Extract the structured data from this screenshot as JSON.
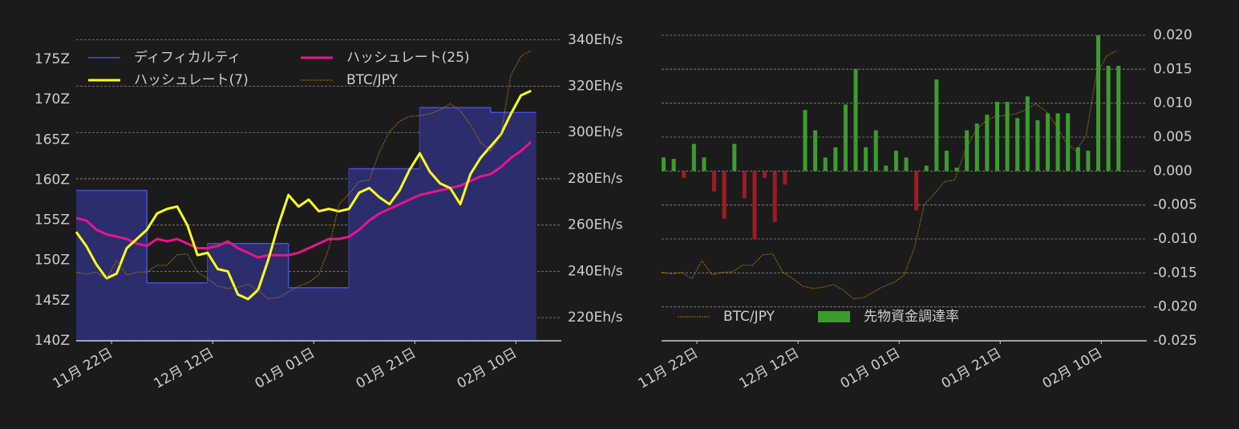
{
  "chart_data": [
    {
      "type": "line",
      "x": [
        0,
        2,
        4,
        6,
        8,
        10,
        12,
        14,
        16,
        18,
        20,
        22,
        24,
        26,
        28,
        30,
        32,
        34,
        36,
        38,
        40,
        42,
        44,
        46,
        48,
        50,
        52,
        54,
        56,
        58,
        60,
        62,
        64,
        66,
        68,
        70,
        72,
        74,
        76,
        78,
        80,
        82,
        84,
        86,
        88,
        90
      ],
      "xlim": [
        0,
        96
      ],
      "xticks": [
        {
          "value": 7,
          "label": "11月 22日"
        },
        {
          "value": 27,
          "label": "12月 12日"
        },
        {
          "value": 47,
          "label": "01月 01日"
        },
        {
          "value": 67,
          "label": "01月 21日"
        },
        {
          "value": 87,
          "label": "02月 10日"
        }
      ],
      "ylim": [
        140,
        178
      ],
      "yticks": [
        {
          "value": 140,
          "label": "140Z"
        },
        {
          "value": 145,
          "label": "145Z"
        },
        {
          "value": 150,
          "label": "150Z"
        },
        {
          "value": 155,
          "label": "155Z"
        },
        {
          "value": 160,
          "label": "160Z"
        },
        {
          "value": 165,
          "label": "165Z"
        },
        {
          "value": 170,
          "label": "170Z"
        },
        {
          "value": 175,
          "label": "175Z"
        }
      ],
      "y2lim": [
        210,
        342
      ],
      "y2ticks": [
        {
          "value": 220,
          "label": "220Eh/s"
        },
        {
          "value": 240,
          "label": "240Eh/s"
        },
        {
          "value": 260,
          "label": "260Eh/s"
        },
        {
          "value": 280,
          "label": "280Eh/s"
        },
        {
          "value": 300,
          "label": "300Eh/s"
        },
        {
          "value": 320,
          "label": "320Eh/s"
        },
        {
          "value": 340,
          "label": "340Eh/s"
        }
      ],
      "y3lim": [
        10,
        17
      ],
      "grid": "y2",
      "series": [
        {
          "name": "ディフィカルティ",
          "style": "step-area",
          "color": "#4b50d8",
          "fill": "#2b2d6c",
          "values": [
            158.7,
            158.7,
            158.7,
            158.7,
            158.7,
            158.7,
            158.7,
            147.2,
            147.2,
            147.2,
            147.2,
            147.2,
            147.2,
            152.1,
            152.1,
            152.1,
            152.1,
            152.1,
            152.1,
            152.1,
            152.1,
            146.6,
            146.6,
            146.6,
            146.6,
            146.6,
            146.6,
            161.4,
            161.4,
            161.4,
            161.4,
            161.4,
            161.4,
            161.4,
            169.0,
            169.0,
            169.0,
            169.0,
            169.0,
            169.0,
            169.0,
            168.4,
            168.4,
            168.4,
            168.4,
            168.4
          ]
        },
        {
          "name": "ハッシュレート(25)",
          "style": "line",
          "axis": "y2",
          "color": "#e8158c",
          "values": [
            263,
            262,
            258,
            256,
            255,
            254,
            252,
            251,
            254,
            253,
            254,
            252,
            250,
            250,
            251,
            253,
            250,
            248,
            246,
            247,
            247,
            247,
            248,
            250,
            252,
            254,
            254,
            255,
            258,
            262,
            265,
            267,
            269,
            271,
            273,
            274,
            275,
            276,
            277,
            279,
            281,
            282,
            285,
            289,
            292,
            296
          ]
        },
        {
          "name": "ハッシュレート(7)",
          "style": "line",
          "axis": "y2",
          "color": "#ffff1a",
          "values": [
            257,
            251,
            243,
            237,
            239,
            250,
            254,
            258,
            265,
            267,
            268,
            260,
            247,
            248,
            241,
            240,
            230,
            228,
            232,
            245,
            260,
            273,
            268,
            271,
            266,
            267,
            266,
            267,
            274,
            276,
            272,
            269,
            275,
            284,
            291,
            283,
            278,
            276,
            269,
            282,
            289,
            294,
            299,
            308,
            316,
            318
          ]
        },
        {
          "name": "BTC/JPY",
          "style": "dotted",
          "axis": "y3",
          "color": "#a87a1c",
          "values": [
            11.57,
            11.53,
            11.57,
            11.42,
            11.84,
            11.51,
            11.57,
            11.58,
            11.73,
            11.73,
            11.97,
            11.99,
            11.57,
            11.42,
            11.25,
            11.2,
            11.23,
            11.29,
            11.16,
            10.96,
            10.99,
            11.12,
            11.25,
            11.34,
            11.51,
            12.12,
            13.13,
            13.37,
            13.65,
            13.68,
            14.33,
            14.79,
            15.03,
            15.14,
            15.16,
            15.2,
            15.29,
            15.43,
            15.27,
            14.95,
            14.55,
            14.35,
            14.7,
            16.08,
            16.52,
            16.65
          ]
        }
      ]
    },
    {
      "type": "bar",
      "x": [
        0,
        2,
        4,
        6,
        8,
        10,
        12,
        14,
        16,
        18,
        20,
        22,
        24,
        26,
        28,
        30,
        32,
        34,
        36,
        38,
        40,
        42,
        44,
        46,
        48,
        50,
        52,
        54,
        56,
        58,
        60,
        62,
        64,
        66,
        68,
        70,
        72,
        74,
        76,
        78,
        80,
        82,
        84,
        86,
        88,
        90
      ],
      "xlim": [
        0,
        96
      ],
      "xticks": [
        {
          "value": 7,
          "label": "11月 22日"
        },
        {
          "value": 27,
          "label": "12月 12日"
        },
        {
          "value": 47,
          "label": "01月 01日"
        },
        {
          "value": 67,
          "label": "01月 21日"
        },
        {
          "value": 87,
          "label": "02月 10日"
        }
      ],
      "y2lim": [
        -0.025,
        0.02
      ],
      "y2ticks": [
        -0.025,
        {
          "value": -0.02,
          "label": "-0.020"
        },
        -0.015,
        {
          "value": -0.01,
          "label": "-0.010"
        },
        -0.005,
        {
          "value": 0,
          "label": "0.000"
        },
        0.005,
        {
          "value": 0.01,
          "label": "0.010"
        },
        0.015,
        {
          "value": 0.02,
          "label": "0.020"
        }
      ],
      "y3lim": [
        10,
        17
      ],
      "grid": "y2",
      "series": [
        {
          "name": "BTC/JPY",
          "style": "dotted",
          "axis": "y3",
          "color": "#a87a1c",
          "values": [
            11.57,
            11.53,
            11.57,
            11.42,
            11.84,
            11.51,
            11.57,
            11.58,
            11.73,
            11.73,
            11.97,
            11.99,
            11.57,
            11.42,
            11.25,
            11.2,
            11.23,
            11.29,
            11.16,
            10.96,
            10.99,
            11.12,
            11.25,
            11.34,
            11.51,
            12.12,
            13.13,
            13.37,
            13.65,
            13.68,
            14.33,
            14.79,
            15.03,
            15.14,
            15.16,
            15.2,
            15.29,
            15.43,
            15.27,
            14.95,
            14.55,
            14.35,
            14.7,
            16.08,
            16.52,
            16.65
          ]
        },
        {
          "name": "先物資金調達率",
          "style": "bar",
          "axis": "y2",
          "color": "#3c9c2e",
          "negative_color": "#9e1b24",
          "values": [
            0.002,
            0.0018,
            -0.001,
            0.004,
            0.002,
            -0.003,
            -0.007,
            0.004,
            -0.004,
            -0.01,
            -0.001,
            -0.0075,
            -0.002,
            0.0,
            0.009,
            0.006,
            0.002,
            0.0035,
            0.0098,
            0.015,
            0.0035,
            0.006,
            0.0008,
            0.003,
            0.002,
            -0.0058,
            0.0008,
            0.0135,
            0.003,
            0.0005,
            0.006,
            0.007,
            0.0083,
            0.0102,
            0.0102,
            0.0078,
            0.011,
            0.0075,
            0.0085,
            0.0085,
            0.0085,
            0.0035,
            0.003,
            0.02,
            0.0155,
            0.0155
          ]
        }
      ]
    }
  ]
}
